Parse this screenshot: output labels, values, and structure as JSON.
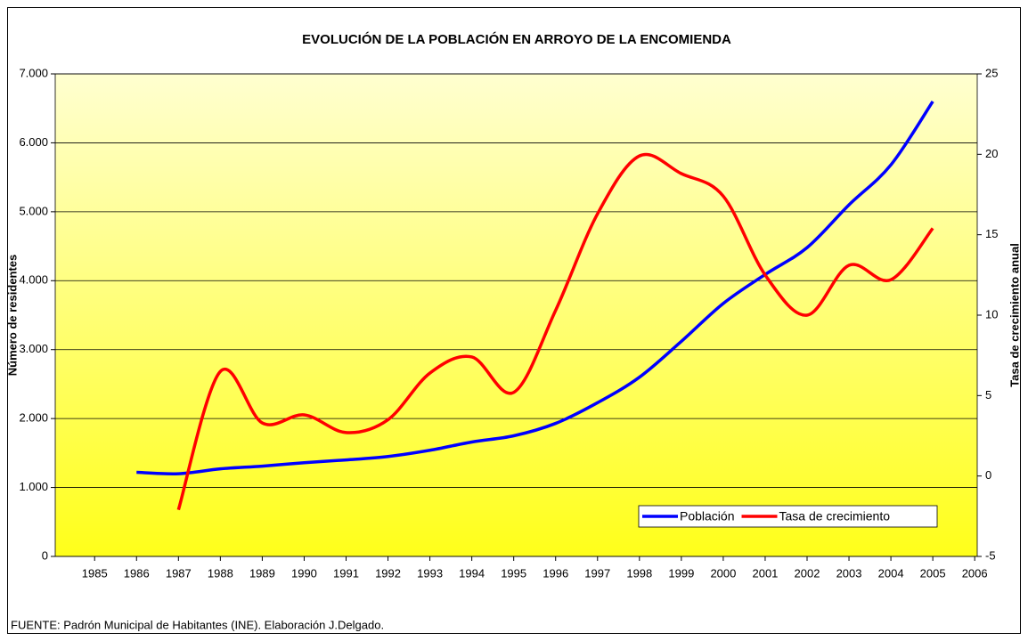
{
  "chart_data": {
    "type": "line",
    "title": "EVOLUCIÓN DE LA POBLACIÓN EN ARROYO DE LA ENCOMIENDA",
    "y_label": "Número de residentes",
    "y2_label": "Tasa de crecimiento anual",
    "source": "FUENTE: Padrón Municipal de Habitantes (INE). Elaboración J.Delgado.",
    "x": [
      1986,
      1987,
      1988,
      1989,
      1990,
      1991,
      1992,
      1993,
      1994,
      1995,
      1996,
      1997,
      1998,
      1999,
      2000,
      2001,
      2002,
      2003,
      2004,
      2005
    ],
    "series": [
      {
        "name": "Población",
        "color": "#0000ff",
        "axis": "y",
        "values": [
          1220,
          1200,
          1270,
          1310,
          1360,
          1400,
          1450,
          1540,
          1660,
          1750,
          1930,
          2230,
          2600,
          3120,
          3670,
          4090,
          4480,
          5100,
          5680,
          6600
        ]
      },
      {
        "name": "Tasa de crecimiento",
        "color": "#ff0000",
        "axis": "y2",
        "values": [
          null,
          -2.1,
          6.5,
          3.3,
          3.8,
          2.7,
          3.5,
          6.4,
          7.4,
          5.2,
          10.3,
          16.3,
          19.9,
          18.8,
          17.4,
          12.5,
          10.0,
          13.1,
          12.2,
          15.4
        ]
      }
    ],
    "xlim": [
      1984.06,
      2006.06
    ],
    "xticks": [
      1985,
      1986,
      1987,
      1988,
      1989,
      1990,
      1991,
      1992,
      1993,
      1994,
      1995,
      1996,
      1997,
      1998,
      1999,
      2000,
      2001,
      2002,
      2003,
      2004,
      2005,
      2006
    ],
    "ylim": [
      0,
      7000
    ],
    "yticks": [
      0,
      {
        "value": 1000,
        "label": "1.000"
      },
      {
        "value": 2000,
        "label": "2.000"
      },
      {
        "value": 3000,
        "label": "3.000"
      },
      {
        "value": 4000,
        "label": "4.000"
      },
      {
        "value": 5000,
        "label": "5.000"
      },
      {
        "value": 6000,
        "label": "6.000"
      },
      {
        "value": 7000,
        "label": "7.000"
      }
    ],
    "y2lim": [
      -5,
      25
    ],
    "y2ticks": [
      -5,
      0,
      5,
      10,
      15,
      20,
      25
    ],
    "grid": true,
    "legend": "lower right"
  }
}
